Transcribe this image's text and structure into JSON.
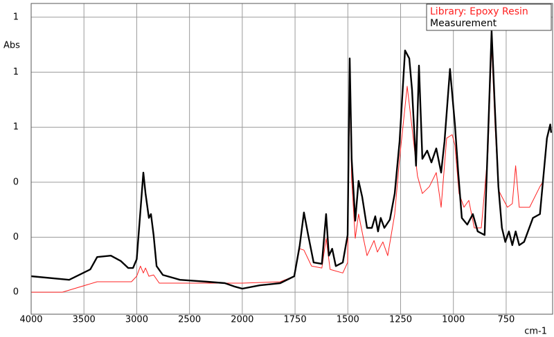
{
  "chart_data": {
    "type": "line",
    "y_label": "Abs",
    "x_label": "cm-1",
    "xlim": [
      4000,
      530
    ],
    "xticks": [
      4000,
      3500,
      3000,
      2500,
      2000,
      1750,
      1500,
      1250,
      1000,
      750
    ],
    "ylim": [
      -0.08,
      1.05
    ],
    "yticks": [
      {
        "value": 0,
        "label": "0"
      },
      {
        "value": 0.2,
        "label": "0"
      },
      {
        "value": 0.4,
        "label": "0"
      },
      {
        "value": 0.6,
        "label": "1"
      },
      {
        "value": 0.8,
        "label": "1"
      },
      {
        "value": 1.0,
        "label": "1"
      }
    ],
    "grid": true,
    "legend": "upper right",
    "series": [
      {
        "name": "Library: Epoxy Resin",
        "color": "#ff2020",
        "x": [
          4000,
          3705,
          3375,
          3050,
          3000,
          2965,
          2937,
          2917,
          2885,
          2840,
          2786,
          2330,
          2000,
          1820,
          1754,
          1728,
          1708,
          1672,
          1623,
          1603,
          1584,
          1524,
          1501,
          1491,
          1482,
          1465,
          1449,
          1426,
          1409,
          1376,
          1360,
          1334,
          1311,
          1278,
          1255,
          1219,
          1196,
          1170,
          1147,
          1114,
          1081,
          1058,
          1032,
          1006,
          993,
          973,
          950,
          927,
          901,
          868,
          836,
          819,
          803,
          787,
          770,
          744,
          721,
          705,
          688,
          639,
          590,
          573
        ],
        "values": [
          0,
          0,
          0.038,
          0.038,
          0.058,
          0.095,
          0.07,
          0.088,
          0.058,
          0.063,
          0.033,
          0.033,
          0.033,
          0.038,
          0.058,
          0.158,
          0.153,
          0.095,
          0.088,
          0.196,
          0.083,
          0.07,
          0.108,
          0.749,
          0.41,
          0.196,
          0.284,
          0.196,
          0.133,
          0.188,
          0.146,
          0.183,
          0.133,
          0.284,
          0.485,
          0.749,
          0.598,
          0.422,
          0.359,
          0.384,
          0.435,
          0.309,
          0.56,
          0.573,
          0.535,
          0.359,
          0.309,
          0.334,
          0.234,
          0.234,
          0.51,
          0.9,
          0.61,
          0.372,
          0.347,
          0.309,
          0.322,
          0.46,
          0.309,
          0.309,
          0.384,
          0.405
        ]
      },
      {
        "name": "Measurement",
        "color": "#000000",
        "x": [
          4000,
          3640,
          3440,
          3375,
          3245,
          3150,
          3080,
          3035,
          3000,
          2970,
          2937,
          2917,
          2885,
          2865,
          2840,
          2812,
          2753,
          2590,
          2330,
          2165,
          2067,
          2000,
          1918,
          1820,
          1754,
          1728,
          1708,
          1688,
          1662,
          1623,
          1603,
          1590,
          1574,
          1557,
          1524,
          1501,
          1491,
          1482,
          1465,
          1449,
          1432,
          1409,
          1386,
          1370,
          1357,
          1344,
          1327,
          1301,
          1278,
          1255,
          1229,
          1209,
          1196,
          1177,
          1163,
          1147,
          1124,
          1104,
          1081,
          1058,
          1042,
          1016,
          993,
          977,
          960,
          934,
          908,
          885,
          852,
          836,
          819,
          803,
          787,
          770,
          754,
          737,
          721,
          705,
          688,
          665,
          623,
          590,
          557,
          541,
          537
        ],
        "values": [
          0.058,
          0.045,
          0.083,
          0.128,
          0.133,
          0.113,
          0.088,
          0.088,
          0.12,
          0.27,
          0.435,
          0.36,
          0.27,
          0.284,
          0.208,
          0.095,
          0.063,
          0.045,
          0.038,
          0.033,
          0.02,
          0.013,
          0.025,
          0.033,
          0.058,
          0.17,
          0.29,
          0.208,
          0.108,
          0.103,
          0.284,
          0.133,
          0.158,
          0.095,
          0.108,
          0.208,
          0.85,
          0.485,
          0.26,
          0.405,
          0.347,
          0.234,
          0.234,
          0.276,
          0.221,
          0.27,
          0.234,
          0.264,
          0.359,
          0.548,
          0.879,
          0.85,
          0.736,
          0.46,
          0.824,
          0.485,
          0.515,
          0.472,
          0.523,
          0.435,
          0.548,
          0.812,
          0.61,
          0.435,
          0.27,
          0.246,
          0.284,
          0.221,
          0.208,
          0.56,
          0.95,
          0.66,
          0.384,
          0.234,
          0.183,
          0.221,
          0.171,
          0.221,
          0.171,
          0.183,
          0.27,
          0.284,
          0.56,
          0.61,
          0.58
        ]
      }
    ]
  }
}
